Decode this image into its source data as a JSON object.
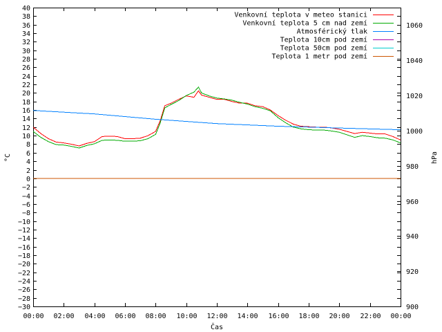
{
  "chart_data": {
    "type": "line",
    "xlabel": "Čas",
    "ylabel_left": "°C",
    "ylabel_right": "hPa",
    "x_ticks": [
      "00:00",
      "02:00",
      "04:00",
      "06:00",
      "08:00",
      "10:00",
      "12:00",
      "14:00",
      "16:00",
      "18:00",
      "20:00",
      "22:00",
      "00:00"
    ],
    "xlim_hours": [
      0,
      24
    ],
    "ylim_left": [
      -30,
      40
    ],
    "y_ticks_left": [
      40,
      38,
      36,
      34,
      32,
      30,
      28,
      26,
      24,
      22,
      20,
      18,
      16,
      14,
      12,
      10,
      8,
      6,
      4,
      2,
      0,
      -2,
      -4,
      -6,
      -8,
      -10,
      -12,
      -14,
      -16,
      -18,
      -20,
      -22,
      -24,
      -26,
      -28,
      -30
    ],
    "ylim_right": [
      900,
      1070
    ],
    "y_ticks_right": [
      1060,
      1040,
      1020,
      1000,
      980,
      960,
      940,
      920,
      900
    ],
    "legend_position": "top-right",
    "grid": false,
    "series": [
      {
        "name": "Venkovní teplota v meteo stanici",
        "color": "#ff0000",
        "axis": "left",
        "x": [
          0,
          0.5,
          1,
          1.5,
          2,
          2.5,
          3,
          3.5,
          4,
          4.5,
          5,
          5.5,
          6,
          6.5,
          7,
          7.5,
          8,
          8.3,
          8.6,
          9,
          9.5,
          10,
          10.5,
          10.8,
          11,
          11.5,
          12,
          12.5,
          13,
          13.5,
          14,
          14.5,
          15,
          15.5,
          16,
          16.5,
          17,
          17.5,
          18,
          18.5,
          19,
          19.5,
          20,
          20.5,
          21,
          21.5,
          22,
          22.5,
          23,
          23.5,
          24
        ],
        "y": [
          12,
          10.5,
          9.3,
          8.5,
          8.3,
          8,
          7.6,
          8.2,
          8.6,
          9.8,
          9.9,
          9.8,
          9.3,
          9.3,
          9.4,
          10,
          11,
          13.5,
          17,
          17.6,
          18.5,
          19.3,
          19,
          20.5,
          19.5,
          19,
          18.5,
          18.5,
          18,
          17.6,
          17.6,
          17,
          16.8,
          16,
          14.7,
          13.6,
          12.7,
          12.2,
          12.1,
          12,
          12,
          11.8,
          11.5,
          11,
          10.5,
          10.8,
          10.6,
          10.4,
          10.4,
          9.8,
          9
        ]
      },
      {
        "name": "Venkovní teplota 5 cm nad zemí",
        "color": "#00aa00",
        "axis": "left",
        "x": [
          0,
          0.5,
          1,
          1.5,
          2,
          2.5,
          3,
          3.5,
          4,
          4.5,
          5,
          5.5,
          6,
          6.5,
          7,
          7.5,
          8,
          8.3,
          8.6,
          9,
          9.5,
          10,
          10.5,
          10.8,
          11,
          11.5,
          12,
          12.5,
          13,
          13.5,
          14,
          14.5,
          15,
          15.5,
          16,
          16.5,
          17,
          17.5,
          18,
          18.5,
          19,
          19.5,
          20,
          20.5,
          21,
          21.5,
          22,
          22.5,
          23,
          23.5,
          24
        ],
        "y": [
          11,
          9.6,
          8.6,
          7.9,
          7.8,
          7.5,
          7.1,
          7.7,
          8.1,
          8.9,
          9,
          8.9,
          8.7,
          8.7,
          8.8,
          9.3,
          10.3,
          13,
          16.5,
          17.3,
          18.2,
          19.4,
          20.2,
          21.4,
          20,
          19.3,
          18.8,
          18.6,
          18.3,
          17.8,
          17.4,
          16.8,
          16.4,
          15.8,
          14.2,
          13,
          12,
          11.6,
          11.4,
          11.3,
          11.3,
          11.1,
          10.8,
          10.2,
          9.6,
          10,
          9.8,
          9.5,
          9.4,
          9,
          8.3
        ]
      },
      {
        "name": "Atmosférický tlak",
        "color": "#0080ff",
        "axis": "right",
        "x": [
          0,
          4,
          8,
          12,
          16,
          20,
          24
        ],
        "y": [
          1011.5,
          1009.5,
          1006.5,
          1004,
          1002.5,
          1001.5,
          1000.5
        ]
      },
      {
        "name": "Teplota 10cm pod zemí",
        "color": "#aa00aa",
        "axis": "left",
        "x": [],
        "y": []
      },
      {
        "name": "Teplota 50cm pod zemí",
        "color": "#00cccc",
        "axis": "left",
        "x": [],
        "y": []
      },
      {
        "name": "Teplota 1 metr pod zemí",
        "color": "#cc5500",
        "axis": "left",
        "x": [
          0,
          24
        ],
        "y": [
          0,
          0
        ]
      }
    ]
  }
}
